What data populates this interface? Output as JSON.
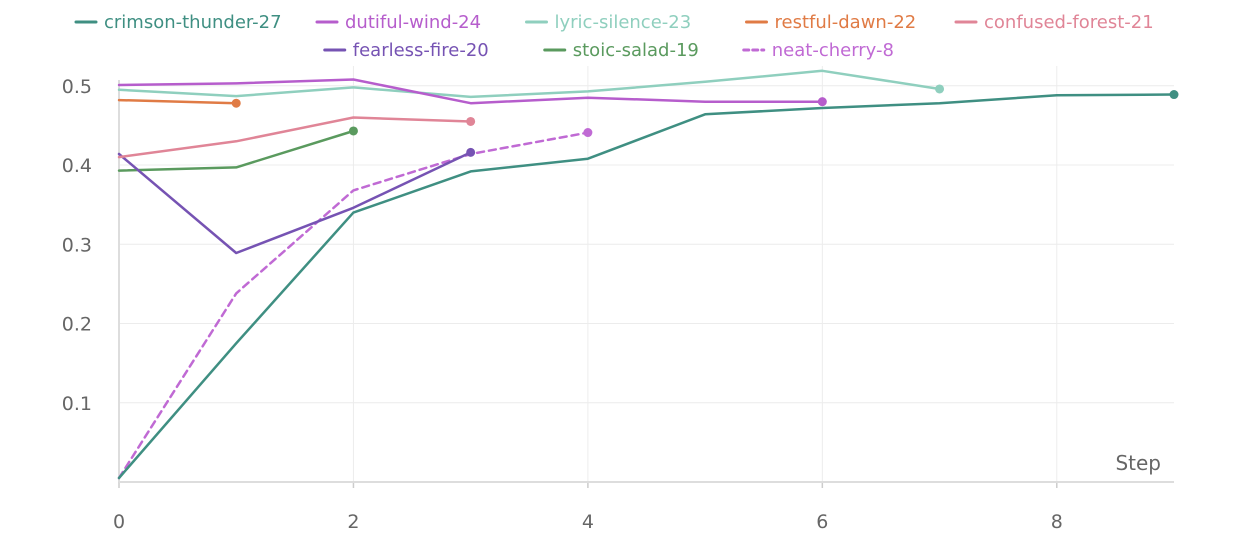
{
  "chart_data": {
    "type": "line",
    "xlabel": "Step",
    "ylabel": "",
    "title": "",
    "xlim": [
      0,
      9
    ],
    "ylim": [
      0,
      0.525
    ],
    "x_ticks": [
      "0",
      "2",
      "4",
      "6",
      "8"
    ],
    "y_ticks": [
      "0.1",
      "0.2",
      "0.3",
      "0.4",
      "0.5"
    ],
    "grid": true,
    "legend_position": "top",
    "series": [
      {
        "name": "crimson-thunder-27",
        "color": "#3f8f82",
        "dashed": false,
        "x": [
          0,
          1,
          2,
          3,
          4,
          5,
          6,
          7,
          8,
          9
        ],
        "y": [
          0.005,
          0.175,
          0.34,
          0.392,
          0.408,
          0.464,
          0.472,
          0.478,
          0.488,
          0.489
        ]
      },
      {
        "name": "dutiful-wind-24",
        "color": "#b65dcc",
        "dashed": false,
        "x": [
          0,
          1,
          2,
          3,
          4,
          5,
          6
        ],
        "y": [
          0.501,
          0.503,
          0.508,
          0.478,
          0.485,
          0.48,
          0.48
        ]
      },
      {
        "name": "lyric-silence-23",
        "color": "#8fcfbe",
        "dashed": false,
        "x": [
          0,
          1,
          2,
          3,
          4,
          5,
          6,
          7
        ],
        "y": [
          0.495,
          0.487,
          0.498,
          0.486,
          0.493,
          0.505,
          0.519,
          0.496
        ]
      },
      {
        "name": "restful-dawn-22",
        "color": "#e07b45",
        "dashed": false,
        "x": [
          0,
          1
        ],
        "y": [
          0.482,
          0.478
        ]
      },
      {
        "name": "confused-forest-21",
        "color": "#e08597",
        "dashed": false,
        "x": [
          0,
          1,
          2,
          3
        ],
        "y": [
          0.41,
          0.43,
          0.46,
          0.455
        ]
      },
      {
        "name": "fearless-fire-20",
        "color": "#7653b3",
        "dashed": false,
        "x": [
          0,
          1,
          2,
          3
        ],
        "y": [
          0.414,
          0.289,
          0.346,
          0.416
        ]
      },
      {
        "name": "stoic-salad-19",
        "color": "#5a9a5e",
        "dashed": false,
        "x": [
          0,
          1,
          2
        ],
        "y": [
          0.393,
          0.397,
          0.443
        ]
      },
      {
        "name": "neat-cherry-8",
        "color": "#c06ad4",
        "dashed": true,
        "x": [
          0,
          1,
          2,
          3,
          4
        ],
        "y": [
          0.005,
          0.238,
          0.368,
          0.414,
          0.441
        ]
      }
    ]
  }
}
